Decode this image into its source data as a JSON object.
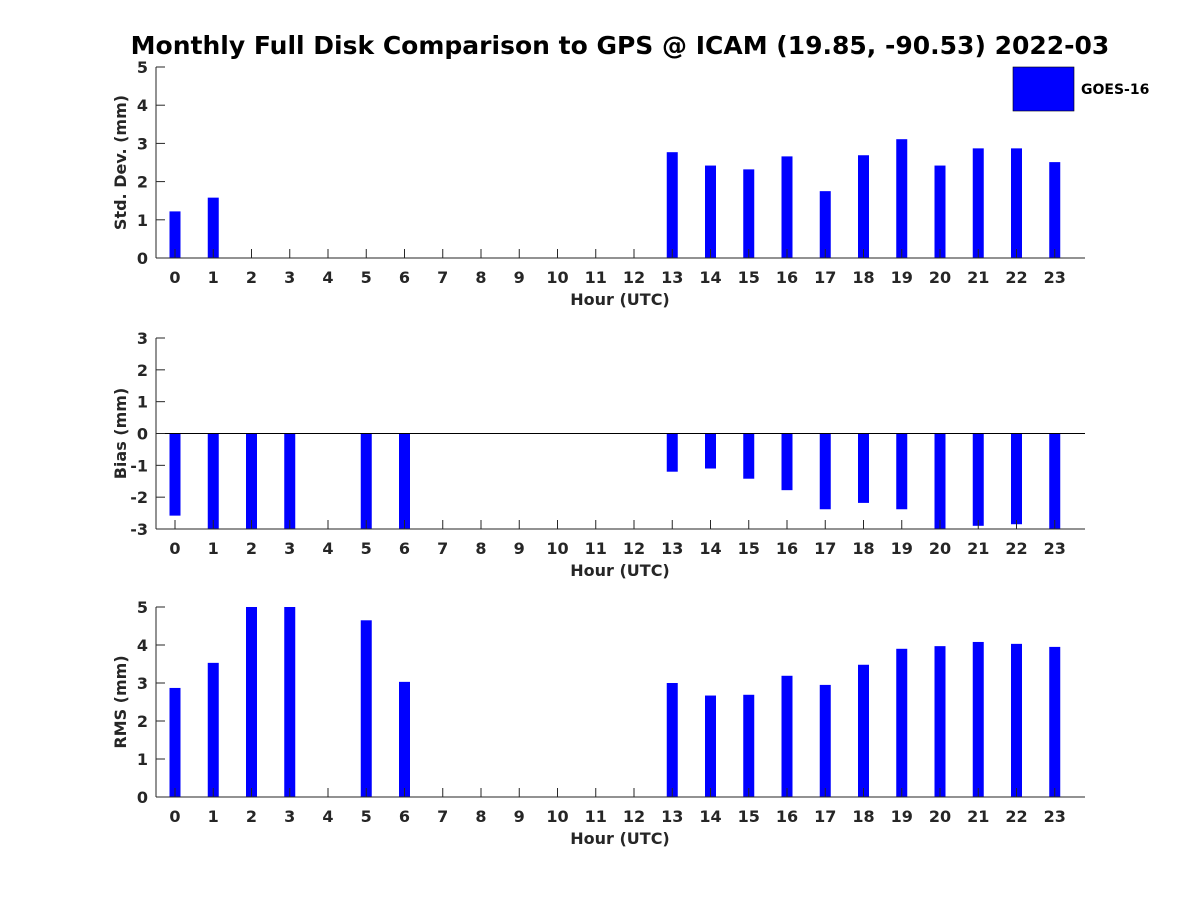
{
  "figure": {
    "title": "Monthly Full Disk Comparison to GPS @ ICAM (19.85, -90.53) 2022-03",
    "legend": {
      "label": "GOES-16",
      "color": "#0000ff",
      "placement": "top-right"
    }
  },
  "chart_data": [
    {
      "type": "bar",
      "ylabel": "Std. Dev. (mm)",
      "xlabel": "Hour (UTC)",
      "categories": [
        "0",
        "1",
        "2",
        "3",
        "4",
        "5",
        "6",
        "7",
        "8",
        "9",
        "10",
        "11",
        "12",
        "13",
        "14",
        "15",
        "16",
        "17",
        "18",
        "19",
        "20",
        "21",
        "22",
        "23"
      ],
      "ylim": [
        0,
        5
      ],
      "yticks": [
        "0",
        "1",
        "2",
        "3",
        "4",
        "5"
      ],
      "grid": false,
      "series": [
        {
          "name": "GOES-16",
          "color": "#0000ff",
          "values": [
            1.22,
            1.58,
            null,
            null,
            null,
            null,
            null,
            null,
            null,
            null,
            null,
            null,
            null,
            2.77,
            2.42,
            2.32,
            2.66,
            1.75,
            2.69,
            3.11,
            2.42,
            2.87,
            2.87,
            2.51
          ]
        }
      ]
    },
    {
      "type": "bar",
      "ylabel": "Bias (mm)",
      "xlabel": "Hour (UTC)",
      "categories": [
        "0",
        "1",
        "2",
        "3",
        "4",
        "5",
        "6",
        "7",
        "8",
        "9",
        "10",
        "11",
        "12",
        "13",
        "14",
        "15",
        "16",
        "17",
        "18",
        "19",
        "20",
        "21",
        "22",
        "23"
      ],
      "ylim": [
        -3,
        3
      ],
      "yticks": [
        "-3",
        "-2",
        "-1",
        "0",
        "1",
        "2",
        "3"
      ],
      "grid": false,
      "zero_line": true,
      "series": [
        {
          "name": "GOES-16",
          "color": "#0000ff",
          "values": [
            -2.58,
            -3.0,
            -3.0,
            -3.0,
            null,
            -3.0,
            -3.0,
            null,
            null,
            null,
            null,
            null,
            null,
            -1.2,
            -1.1,
            -1.42,
            -1.78,
            -2.38,
            -2.18,
            -2.38,
            -3.0,
            -2.9,
            -2.85,
            -3.0
          ]
        }
      ]
    },
    {
      "type": "bar",
      "ylabel": "RMS (mm)",
      "xlabel": "Hour (UTC)",
      "categories": [
        "0",
        "1",
        "2",
        "3",
        "4",
        "5",
        "6",
        "7",
        "8",
        "9",
        "10",
        "11",
        "12",
        "13",
        "14",
        "15",
        "16",
        "17",
        "18",
        "19",
        "20",
        "21",
        "22",
        "23"
      ],
      "ylim": [
        0,
        5
      ],
      "yticks": [
        "0",
        "1",
        "2",
        "3",
        "4",
        "5"
      ],
      "grid": false,
      "series": [
        {
          "name": "GOES-16",
          "color": "#0000ff",
          "values": [
            2.87,
            3.53,
            5.0,
            5.0,
            null,
            4.65,
            3.03,
            null,
            null,
            null,
            null,
            null,
            null,
            3.0,
            2.67,
            2.69,
            3.19,
            2.95,
            3.48,
            3.9,
            3.97,
            4.08,
            4.03,
            3.95
          ]
        }
      ]
    }
  ]
}
